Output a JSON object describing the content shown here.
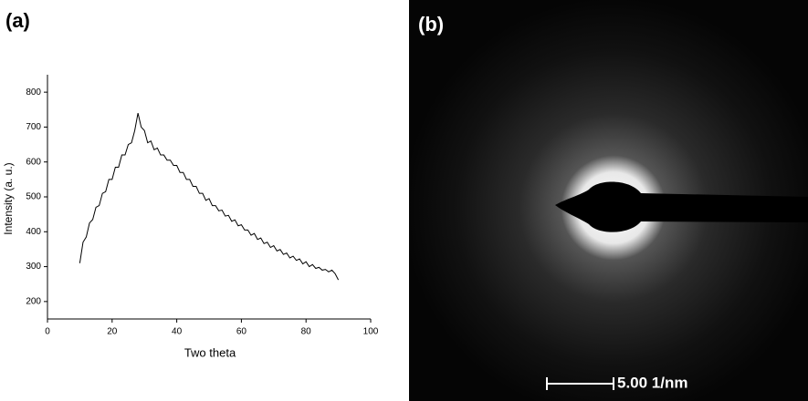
{
  "chart_data": {
    "type": "line",
    "panel_label": "(a)",
    "x_label": "Two theta",
    "y_label": "Intensity (a. u.)",
    "x": [
      10,
      11,
      12,
      13,
      14,
      15,
      16,
      17,
      18,
      19,
      20,
      21,
      22,
      23,
      24,
      25,
      26,
      27,
      28,
      29,
      30,
      31,
      32,
      33,
      34,
      35,
      36,
      37,
      38,
      39,
      40,
      41,
      42,
      43,
      44,
      45,
      46,
      47,
      48,
      49,
      50,
      51,
      52,
      53,
      54,
      55,
      56,
      57,
      58,
      59,
      60,
      61,
      62,
      63,
      64,
      65,
      66,
      67,
      68,
      69,
      70,
      71,
      72,
      73,
      74,
      75,
      76,
      77,
      78,
      79,
      80,
      81,
      82,
      83,
      84,
      85,
      86,
      87,
      88,
      89,
      90
    ],
    "values": [
      310,
      370,
      385,
      425,
      435,
      470,
      475,
      510,
      515,
      550,
      550,
      585,
      585,
      620,
      620,
      650,
      655,
      690,
      740,
      700,
      690,
      655,
      660,
      635,
      640,
      620,
      620,
      605,
      605,
      590,
      590,
      570,
      570,
      550,
      550,
      530,
      530,
      510,
      510,
      490,
      495,
      475,
      475,
      460,
      462,
      445,
      447,
      430,
      434,
      417,
      420,
      405,
      405,
      390,
      395,
      378,
      382,
      366,
      370,
      355,
      360,
      345,
      349,
      335,
      339,
      325,
      330,
      318,
      322,
      308,
      314,
      300,
      306,
      295,
      298,
      290,
      292,
      285,
      290,
      280,
      262
    ],
    "color": "#000000",
    "xlim": [
      0,
      100
    ],
    "xticks": [
      0,
      20,
      40,
      60,
      80,
      100
    ],
    "ylim": [
      150,
      850
    ],
    "yticks": [
      200,
      300,
      400,
      500,
      600,
      700,
      800
    ]
  },
  "image_panel": {
    "panel_label": "(b)",
    "scale_bar": "5.00 1/nm"
  }
}
